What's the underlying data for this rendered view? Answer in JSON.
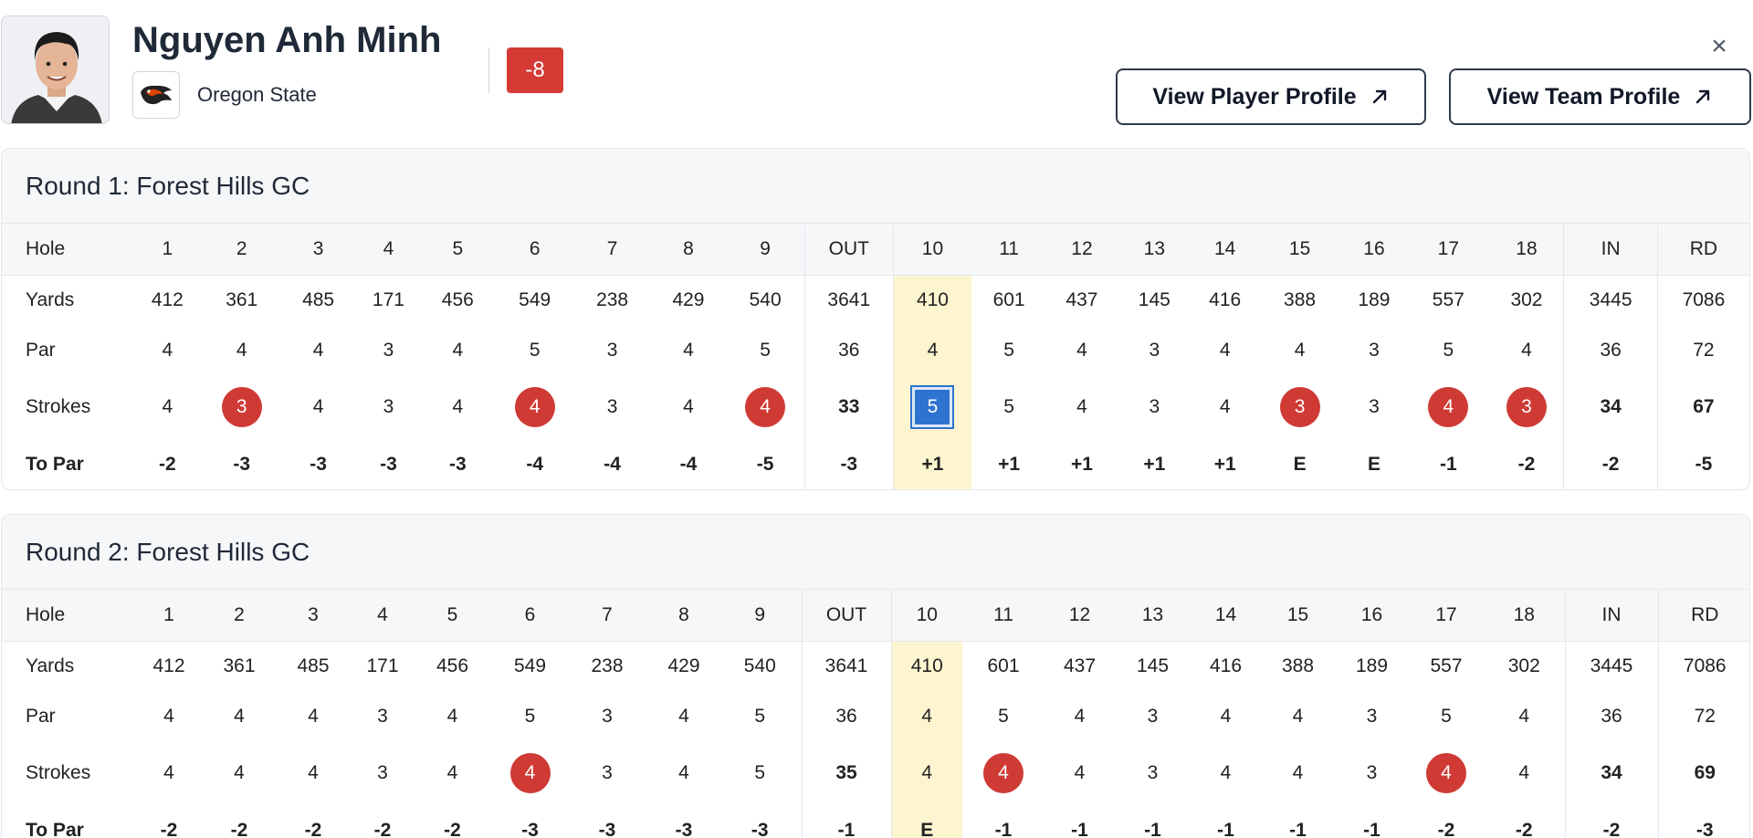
{
  "player": {
    "name": "Nguyen Anh Minh",
    "team": "Oregon State",
    "total_score": "-8"
  },
  "actions": {
    "view_player_profile": "View Player Profile",
    "view_team_profile": "View Team Profile",
    "close": "×"
  },
  "colors": {
    "under_par": "#cf3a35",
    "over_par": "#2f73d0",
    "current_hole_highlight": "#fdf5d0"
  },
  "rounds": [
    {
      "title": "Round 1: Forest Hills GC",
      "current_hole": "10",
      "row_labels": [
        "Hole",
        "Yards",
        "Par",
        "Strokes",
        "To Par"
      ],
      "holes": [
        "1",
        "2",
        "3",
        "4",
        "5",
        "6",
        "7",
        "8",
        "9",
        "OUT",
        "10",
        "11",
        "12",
        "13",
        "14",
        "15",
        "16",
        "17",
        "18",
        "IN",
        "RD"
      ],
      "yards": [
        "412",
        "361",
        "485",
        "171",
        "456",
        "549",
        "238",
        "429",
        "540",
        "3641",
        "410",
        "601",
        "437",
        "145",
        "416",
        "388",
        "189",
        "557",
        "302",
        "3445",
        "7086"
      ],
      "par": [
        "4",
        "4",
        "4",
        "3",
        "4",
        "5",
        "3",
        "4",
        "5",
        "36",
        "4",
        "5",
        "4",
        "3",
        "4",
        "4",
        "3",
        "5",
        "4",
        "36",
        "72"
      ],
      "strokes": [
        "4",
        "3",
        "4",
        "3",
        "4",
        "4",
        "3",
        "4",
        "4",
        "33",
        "5",
        "5",
        "4",
        "3",
        "4",
        "3",
        "3",
        "4",
        "3",
        "34",
        "67"
      ],
      "to_par": [
        "-2",
        "-3",
        "-3",
        "-3",
        "-3",
        "-4",
        "-4",
        "-4",
        "-5",
        "-3",
        "+1",
        "+1",
        "+1",
        "+1",
        "+1",
        "E",
        "E",
        "-1",
        "-2",
        "-2",
        "-5"
      ]
    },
    {
      "title": "Round 2: Forest Hills GC",
      "current_hole": "10",
      "row_labels": [
        "Hole",
        "Yards",
        "Par",
        "Strokes",
        "To Par"
      ],
      "holes": [
        "1",
        "2",
        "3",
        "4",
        "5",
        "6",
        "7",
        "8",
        "9",
        "OUT",
        "10",
        "11",
        "12",
        "13",
        "14",
        "15",
        "16",
        "17",
        "18",
        "IN",
        "RD"
      ],
      "yards": [
        "412",
        "361",
        "485",
        "171",
        "456",
        "549",
        "238",
        "429",
        "540",
        "3641",
        "410",
        "601",
        "437",
        "145",
        "416",
        "388",
        "189",
        "557",
        "302",
        "3445",
        "7086"
      ],
      "par": [
        "4",
        "4",
        "4",
        "3",
        "4",
        "5",
        "3",
        "4",
        "5",
        "36",
        "4",
        "5",
        "4",
        "3",
        "4",
        "4",
        "3",
        "5",
        "4",
        "36",
        "72"
      ],
      "strokes": [
        "4",
        "4",
        "4",
        "3",
        "4",
        "4",
        "3",
        "4",
        "5",
        "35",
        "4",
        "4",
        "4",
        "3",
        "4",
        "4",
        "3",
        "4",
        "4",
        "34",
        "69"
      ],
      "to_par": [
        "-2",
        "-2",
        "-2",
        "-2",
        "-2",
        "-3",
        "-3",
        "-3",
        "-3",
        "-1",
        "E",
        "-1",
        "-1",
        "-1",
        "-1",
        "-1",
        "-1",
        "-2",
        "-2",
        "-2",
        "-3"
      ]
    }
  ]
}
